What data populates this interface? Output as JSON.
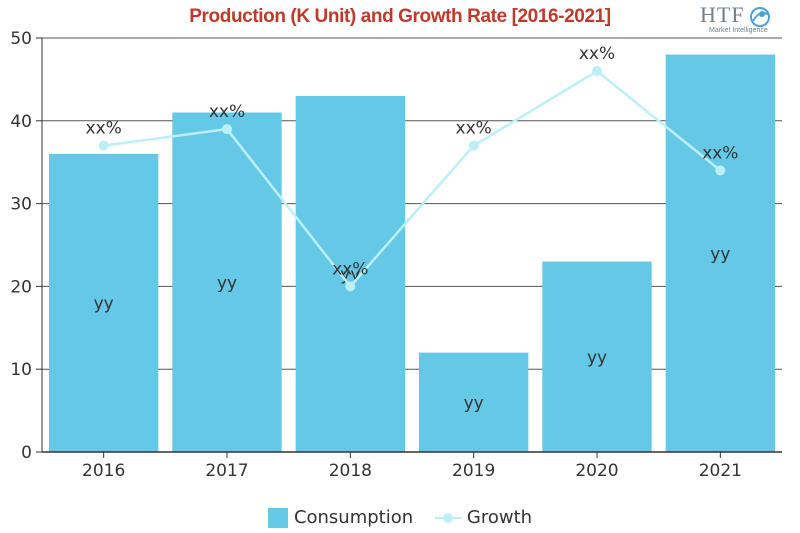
{
  "title": "Production (K Unit) and Growth Rate [2016-2021]",
  "logo": {
    "text": "HTF",
    "subtext": "Market Intelligence",
    "icon": "globe-icon"
  },
  "colors": {
    "bar": "#64c8e6",
    "line": "#bdf0f6",
    "axis": "#333333",
    "grid": "#555555",
    "text": "#333333"
  },
  "chart_data": {
    "type": "bar",
    "categories": [
      "2016",
      "2017",
      "2018",
      "2019",
      "2020",
      "2021"
    ],
    "series": [
      {
        "name": "Consumption",
        "type": "bar",
        "values": [
          36,
          41,
          43,
          12,
          23,
          48
        ],
        "labels": [
          "yy",
          "yy",
          "yy",
          "yy",
          "yy",
          "yy"
        ]
      },
      {
        "name": "Growth",
        "type": "line",
        "values": [
          37,
          39,
          20,
          37,
          46,
          34
        ],
        "labels": [
          "xx%",
          "xx%",
          "xx%",
          "xx%",
          "xx%",
          "xx%"
        ]
      }
    ],
    "ylim": [
      0,
      50
    ],
    "yticks": [
      "0",
      "10",
      "20",
      "30",
      "40",
      "50"
    ],
    "grid": true,
    "legend_position": "bottom"
  }
}
